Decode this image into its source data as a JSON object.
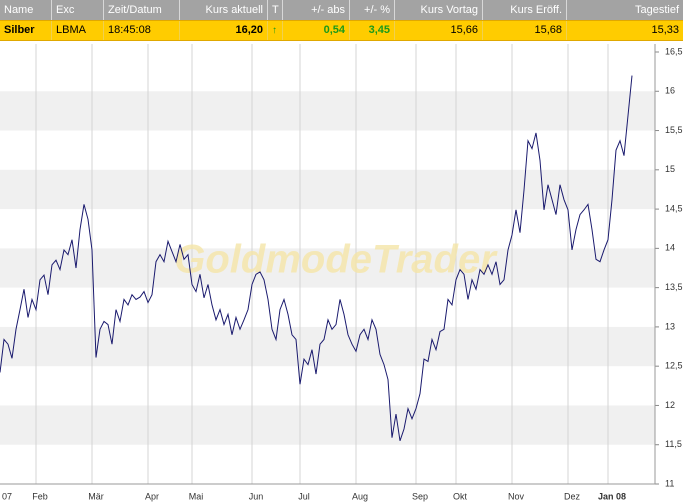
{
  "table": {
    "header": [
      "Name",
      "Exc",
      "Zeit/Datum",
      "Kurs aktuell",
      "T",
      "+/- abs",
      "+/- %",
      "Kurs Vortag",
      "Kurs Eröff.",
      "Tagestief"
    ],
    "row": [
      "Silber",
      "LBMA",
      "18:45:08",
      "16,20",
      "0,54",
      "3,45",
      "15,66",
      "15,68",
      "15,33"
    ]
  },
  "chart_data": {
    "type": "line",
    "watermark": "GoldmodeTrader",
    "categories": [
      "07",
      null,
      null,
      null,
      null,
      null,
      null,
      null,
      null,
      "Feb",
      null,
      null,
      null,
      null,
      null,
      null,
      null,
      null,
      null,
      null,
      null,
      null,
      null,
      "Mär",
      null,
      null,
      null,
      null,
      null,
      null,
      null,
      null,
      null,
      null,
      null,
      null,
      null,
      "Apr",
      null,
      null,
      null,
      null,
      null,
      null,
      null,
      null,
      null,
      null,
      "Mai",
      null,
      null,
      null,
      null,
      null,
      null,
      null,
      null,
      null,
      null,
      null,
      null,
      null,
      null,
      "Jun",
      null,
      null,
      null,
      null,
      null,
      null,
      null,
      null,
      null,
      null,
      null,
      "Jul",
      null,
      null,
      null,
      null,
      null,
      null,
      null,
      null,
      null,
      null,
      null,
      null,
      null,
      "Aug",
      null,
      null,
      null,
      null,
      null,
      null,
      null,
      null,
      null,
      null,
      null,
      null,
      null,
      null,
      "Sep",
      null,
      null,
      null,
      null,
      null,
      null,
      null,
      null,
      null,
      "Okt",
      null,
      null,
      null,
      null,
      null,
      null,
      null,
      null,
      null,
      null,
      null,
      null,
      null,
      "Nov",
      null,
      null,
      null,
      null,
      null,
      null,
      null,
      null,
      null,
      null,
      null,
      null,
      null,
      "Dez",
      null,
      null,
      null,
      null,
      null,
      null,
      null,
      null,
      null,
      "Jan 08",
      null,
      null,
      null,
      null,
      null,
      null
    ],
    "color": "#1a1a6e",
    "values": [
      12.42,
      12.84,
      12.78,
      12.6,
      12.97,
      13.22,
      13.48,
      13.12,
      13.35,
      13.22,
      13.6,
      13.66,
      13.41,
      13.79,
      13.85,
      13.73,
      13.98,
      13.92,
      14.11,
      13.75,
      14.24,
      14.56,
      14.37,
      13.98,
      12.61,
      12.97,
      13.07,
      13.03,
      12.78,
      13.22,
      13.07,
      13.35,
      13.28,
      13.41,
      13.35,
      13.38,
      13.45,
      13.31,
      13.41,
      13.83,
      13.92,
      13.83,
      14.09,
      13.96,
      13.83,
      14.05,
      13.86,
      13.92,
      13.54,
      13.45,
      13.67,
      13.37,
      13.54,
      13.28,
      13.09,
      13.22,
      13.03,
      13.16,
      12.9,
      13.12,
      12.97,
      13.09,
      13.22,
      13.54,
      13.67,
      13.7,
      13.6,
      13.35,
      12.97,
      12.84,
      13.22,
      13.35,
      13.16,
      12.9,
      12.84,
      12.27,
      12.59,
      12.52,
      12.71,
      12.4,
      12.78,
      12.84,
      13.09,
      12.97,
      13.03,
      13.35,
      13.16,
      12.9,
      12.78,
      12.69,
      12.9,
      12.97,
      12.84,
      13.09,
      12.97,
      12.65,
      12.52,
      12.33,
      11.59,
      11.89,
      11.55,
      11.7,
      11.96,
      11.83,
      11.96,
      12.15,
      12.59,
      12.56,
      12.84,
      12.71,
      12.94,
      12.97,
      13.35,
      13.28,
      13.6,
      13.73,
      13.67,
      13.35,
      13.6,
      13.48,
      13.73,
      13.67,
      13.79,
      13.67,
      13.83,
      13.54,
      13.6,
      13.98,
      14.17,
      14.49,
      14.2,
      14.74,
      15.37,
      15.27,
      15.47,
      15.12,
      14.49,
      14.81,
      14.62,
      14.43,
      14.81,
      14.62,
      14.49,
      13.98,
      14.24,
      14.43,
      14.49,
      14.56,
      14.24,
      13.86,
      13.83,
      13.98,
      14.11,
      14.62,
      15.25,
      15.37,
      15.18,
      15.69,
      16.2
    ],
    "ylim": [
      11,
      16.5
    ],
    "yticks": [
      11,
      {
        "value": 11.5,
        "label": "11,5"
      },
      12,
      {
        "value": 12.5,
        "label": "12,5"
      },
      13,
      {
        "value": 13.5,
        "label": "13,5"
      },
      14,
      {
        "value": 14.5,
        "label": "14,5"
      },
      15,
      {
        "value": 15.5,
        "label": "15,5"
      },
      16,
      {
        "value": 16.5,
        "label": "16,5"
      }
    ],
    "grid": true
  }
}
